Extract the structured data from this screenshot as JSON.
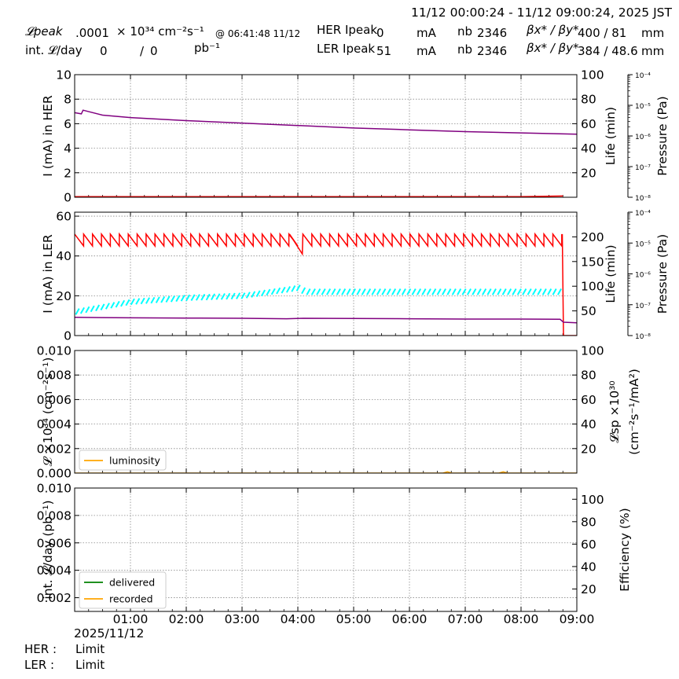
{
  "header": {
    "time_range": "11/12 00:00:24 - 11/12 09:00:24, 2025 JST",
    "lpeak_label": "𝓛peak",
    "lpeak_value": ".0001",
    "lpeak_unit": "× 10³⁴ cm⁻²s⁻¹",
    "lpeak_time": "@ 06:41:48 11/12",
    "intl_label": "int. 𝓛/day",
    "intl_value1": "0",
    "intl_sep": "/",
    "intl_value2": "0",
    "intl_unit": "pb⁻¹",
    "her_label": "HER Ipeak",
    "her_value": "0",
    "her_unit": "mA",
    "her_nb_label": "nb",
    "her_nb": "2346",
    "her_beta_label": "βx* / βy*",
    "her_beta": "400  / 81",
    "her_beta_unit": "mm",
    "ler_label": "LER Ipeak",
    "ler_value": "51",
    "ler_unit": "mA",
    "ler_nb_label": "nb",
    "ler_nb": "2346",
    "ler_beta_label": "βx* / βy*",
    "ler_beta": "384  / 48.6",
    "ler_beta_unit": "mm"
  },
  "footer": {
    "date": "2025/11/12",
    "her_label": "HER :",
    "her_status": "Limit",
    "ler_label": "LER :",
    "ler_status": "Limit"
  },
  "colors": {
    "current": "#ff0000",
    "life": "#800080",
    "pressure": "#00ffff",
    "luminosity": "#ffa500",
    "delivered": "#008000",
    "recorded": "#ffa500",
    "grid": "#888888"
  },
  "chart_data": [
    {
      "type": "line",
      "title": "",
      "x_ticks": [
        "01:00",
        "02:00",
        "03:00",
        "04:00",
        "05:00",
        "06:00",
        "07:00",
        "08:00",
        "09:00"
      ],
      "xlim": [
        0,
        9
      ],
      "ylabel": "I (mA) in HER",
      "ylim": [
        0,
        10
      ],
      "y_ticks": [
        "0",
        "2",
        "4",
        "6",
        "8",
        "10"
      ],
      "y2label": "Life (min)",
      "y2lim": [
        0,
        100
      ],
      "y2_ticks": [
        "20",
        "40",
        "60",
        "80",
        "100"
      ],
      "y3label": "Pressure (Pa)",
      "y3_ticks": [
        "10⁻⁸",
        "10⁻⁷",
        "10⁻⁶",
        "10⁻⁵",
        "10⁻⁴"
      ],
      "y3_scale": "log",
      "grid": true,
      "series": [
        {
          "role": "current",
          "axis": "y",
          "x": [
            0,
            2,
            4,
            6,
            8,
            8.75
          ],
          "y": [
            0.05,
            0.05,
            0.05,
            0.05,
            0.05,
            0.1
          ]
        },
        {
          "role": "life",
          "axis": "y2",
          "x": [
            0,
            0.12,
            0.15,
            0.5,
            1,
            2,
            3,
            4,
            5,
            6,
            7,
            8,
            9
          ],
          "y": [
            69,
            68,
            71,
            67,
            65,
            62.5,
            60.5,
            58.5,
            56.5,
            55,
            53.5,
            52.5,
            51.5
          ]
        }
      ]
    },
    {
      "type": "line",
      "title": "",
      "x_ticks": [
        "01:00",
        "02:00",
        "03:00",
        "04:00",
        "05:00",
        "06:00",
        "07:00",
        "08:00",
        "09:00"
      ],
      "xlim": [
        0,
        9
      ],
      "ylabel": "I (mA) in LER",
      "ylim": [
        0,
        62
      ],
      "y_ticks": [
        "0",
        "20",
        "40",
        "60"
      ],
      "y2label": "Life (min)",
      "y2lim": [
        0,
        250
      ],
      "y2_ticks": [
        "50",
        "100",
        "150",
        "200"
      ],
      "y3label": "Pressure (Pa)",
      "y3_ticks": [
        "10⁻⁸",
        "10⁻⁷",
        "10⁻⁶",
        "10⁻⁵",
        "10⁻⁴"
      ],
      "y3_scale": "log",
      "grid": true,
      "series": [
        {
          "role": "current",
          "axis": "y",
          "sawtooth": true,
          "low": 45,
          "high": 51,
          "x_start": 0,
          "x_stop": 8.74,
          "period": 0.16,
          "gap_x": [
            3.85,
            4.08
          ],
          "gap_low": 41,
          "drop_x": 8.74,
          "drop_to": 0
        },
        {
          "role": "life",
          "axis": "y2",
          "x": [
            0,
            1,
            2,
            3,
            3.8,
            4.1,
            5,
            6,
            7,
            8,
            8.7,
            8.76,
            9
          ],
          "y": [
            37,
            36,
            35.5,
            35,
            34,
            35,
            34.5,
            34,
            33.5,
            33.5,
            33,
            27,
            26
          ]
        },
        {
          "role": "pressure",
          "axis": "y",
          "sawtooth": true,
          "x": [
            0,
            1,
            2,
            3,
            4,
            4.1,
            5,
            6,
            7,
            8,
            8.7
          ],
          "y": [
            12,
            17,
            19,
            20,
            24,
            22,
            22,
            22,
            22,
            22,
            22
          ],
          "swing": 3
        }
      ]
    },
    {
      "type": "line",
      "title": "",
      "x_ticks": [
        "01:00",
        "02:00",
        "03:00",
        "04:00",
        "05:00",
        "06:00",
        "07:00",
        "08:00",
        "09:00"
      ],
      "xlim": [
        0,
        9
      ],
      "ylabel": "𝓛 ×10³⁴ (cm⁻²s⁻¹)",
      "ylim": [
        0,
        0.01
      ],
      "y_ticks": [
        "0.000",
        "0.002",
        "0.004",
        "0.006",
        "0.008",
        "0.010"
      ],
      "y2label": "𝓛sp ×10³⁰",
      "y2label_line2": "(cm⁻²s⁻¹/mA²)",
      "y2lim": [
        0,
        100
      ],
      "y2_ticks": [
        "20",
        "40",
        "60",
        "80",
        "100"
      ],
      "grid": true,
      "legend": "lower-left",
      "series": [
        {
          "role": "luminosity",
          "name": "luminosity",
          "axis": "y",
          "x": [
            0,
            6.6,
            6.68,
            6.76,
            7.6,
            7.68,
            7.76,
            9
          ],
          "y": [
            0,
            0,
            0.0001,
            0,
            0,
            0.0001,
            0,
            0
          ]
        }
      ]
    },
    {
      "type": "line",
      "title": "",
      "x_ticks": [
        "01:00",
        "02:00",
        "03:00",
        "04:00",
        "05:00",
        "06:00",
        "07:00",
        "08:00",
        "09:00"
      ],
      "xlim": [
        0,
        9
      ],
      "ylabel": "int. 𝓛/day (pb⁻¹)",
      "ylim": [
        0.001,
        0.01
      ],
      "y_ticks": [
        "0.002",
        "0.004",
        "0.006",
        "0.008",
        "0.010"
      ],
      "y2label": "Efficiency (%)",
      "y2lim": [
        0,
        110
      ],
      "y2_ticks": [
        "20",
        "40",
        "60",
        "80",
        "100"
      ],
      "grid": true,
      "legend": "lower-left",
      "series": [
        {
          "role": "delivered",
          "name": "delivered",
          "axis": "y",
          "x": [],
          "y": []
        },
        {
          "role": "recorded",
          "name": "recorded",
          "axis": "y",
          "x": [],
          "y": []
        }
      ]
    }
  ]
}
